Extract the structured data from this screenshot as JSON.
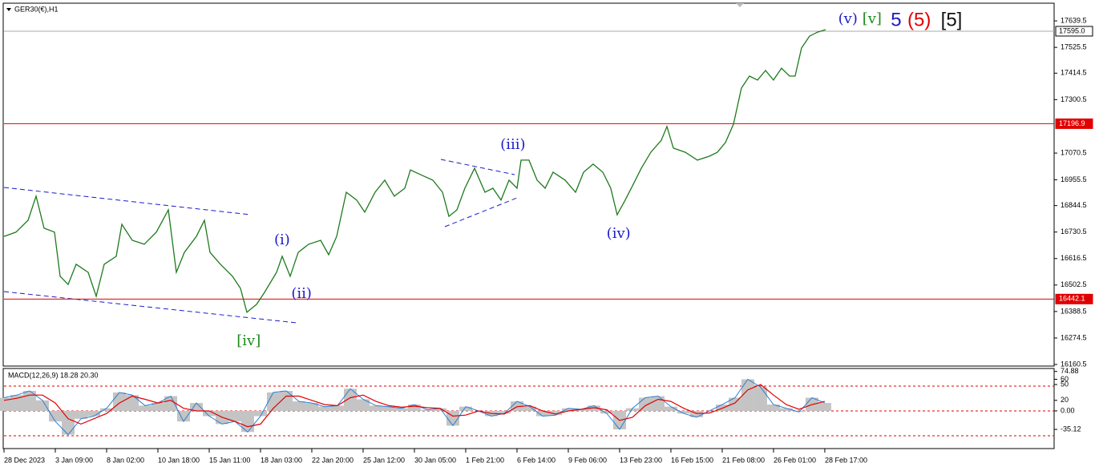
{
  "chart_data": [
    {
      "type": "line",
      "title": "GER30(€),H1",
      "color": "#1d7a1d",
      "x": [
        0,
        0.234,
        0.469,
        0.625,
        0.781,
        0.984,
        1.094,
        1.25,
        1.406,
        1.641,
        1.797,
        1.953,
        2.188,
        2.297,
        2.5,
        2.734,
        2.969,
        3.203,
        3.359,
        3.516,
        3.75,
        3.906,
        4.016,
        4.219,
        4.453,
        4.609,
        4.734,
        4.922,
        5.078,
        5.313,
        5.422,
        5.578,
        5.734,
        5.938,
        6.172,
        6.328,
        6.484,
        6.672,
        6.875,
        7.031,
        7.234,
        7.422,
        7.609,
        7.813,
        7.922,
        8.125,
        8.359,
        8.547,
        8.672,
        8.828,
        8.984,
        9.172,
        9.375,
        9.531,
        9.688,
        9.844,
        10,
        10.078,
        10.234,
        10.391,
        10.547,
        10.703,
        10.938,
        11.141,
        11.297,
        11.484,
        11.672,
        11.828,
        11.953,
        12.109,
        12.266,
        12.422,
        12.609,
        12.813,
        12.922,
        13.047,
        13.281,
        13.516,
        13.75,
        13.906,
        14.063,
        14.219,
        14.375,
        14.531,
        14.688,
        14.844,
        15,
        15.156,
        15.313,
        15.422,
        15.547,
        15.703,
        15.859,
        16.016
      ],
      "values": [
        16712,
        16730,
        16781,
        16885,
        16747,
        16730,
        16540,
        16505,
        16592,
        16557,
        16454,
        16592,
        16626,
        16764,
        16695,
        16678,
        16730,
        16826,
        16557,
        16643,
        16712,
        16781,
        16643,
        16592,
        16540,
        16488,
        16385,
        16419,
        16471,
        16557,
        16626,
        16540,
        16643,
        16678,
        16695,
        16633,
        16712,
        16902,
        16868,
        16816,
        16902,
        16954,
        16885,
        16919,
        16998,
        16977,
        16954,
        16902,
        16798,
        16826,
        16919,
        17005,
        16902,
        16919,
        16868,
        16954,
        16919,
        17040,
        17040,
        16954,
        16919,
        16988,
        16954,
        16902,
        16988,
        17023,
        16988,
        16919,
        16805,
        16868,
        16936,
        17005,
        17074,
        17126,
        17185,
        17092,
        17074,
        17040,
        17057,
        17074,
        17116,
        17195,
        17350,
        17402,
        17385,
        17426,
        17385,
        17436,
        17402,
        17402,
        17523,
        17574,
        17591,
        17602
      ],
      "xlim": [
        0,
        20.47
      ],
      "ylim": [
        16153.6,
        17677.7
      ],
      "yticks": [
        17639.5,
        17525.5,
        17414.5,
        17300.5,
        17070.5,
        16955.5,
        16844.5,
        16730.5,
        16616.5,
        16502.5,
        16388.5,
        16274.5,
        16160.5
      ],
      "xticks": [
        {
          "value": 0,
          "label": "28 Dec 2023"
        },
        {
          "value": 1,
          "label": "3 Jan 09:00"
        },
        {
          "value": 2,
          "label": "8 Jan 02:00"
        },
        {
          "value": 3,
          "label": "10 Jan 18:00"
        },
        {
          "value": 4,
          "label": "15 Jan 11:00"
        },
        {
          "value": 5,
          "label": "18 Jan 03:00"
        },
        {
          "value": 6,
          "label": "22 Jan 20:00"
        },
        {
          "value": 7,
          "label": "25 Jan 12:00"
        },
        {
          "value": 8,
          "label": "30 Jan 05:00"
        },
        {
          "value": 9,
          "label": "1 Feb 21:00"
        },
        {
          "value": 10,
          "label": "6 Feb 14:00"
        },
        {
          "value": 11,
          "label": "9 Feb 06:00"
        },
        {
          "value": 12,
          "label": "13 Feb 23:00"
        },
        {
          "value": 13,
          "label": "16 Feb 15:00"
        },
        {
          "value": 14,
          "label": "21 Feb 08:00"
        },
        {
          "value": 15,
          "label": "26 Feb 01:00"
        },
        {
          "value": 16,
          "label": "28 Feb 17:00"
        }
      ],
      "hlines": [
        {
          "value": 17595,
          "label": "17595.0",
          "color": "#a8a8a8"
        },
        {
          "value": 17196.9,
          "color": "#e00000"
        },
        {
          "value": 16442.1,
          "color": "#e00000"
        }
      ],
      "annotations": [
        {
          "text": "(v)",
          "x": 16.45,
          "y": 17647,
          "color": "#1a1acc"
        },
        {
          "text": "[v]",
          "x": 16.92,
          "y": 17647,
          "color": "#1d8a1d"
        },
        {
          "text": "5",
          "x": 17.39,
          "y": 17640,
          "color": "#1a1acc"
        },
        {
          "text": "(5)",
          "x": 17.84,
          "y": 17640,
          "color": "#e00000"
        },
        {
          "text": "[5]",
          "x": 18.47,
          "y": 17640,
          "color": "#111111"
        },
        {
          "text": "(iii)",
          "x": 9.92,
          "y": 17105,
          "color": "#1a1acc"
        },
        {
          "text": "(iv)",
          "x": 11.98,
          "y": 16723,
          "color": "#1a1acc"
        },
        {
          "text": "(i)",
          "x": 5.42,
          "y": 16695,
          "color": "#1a1acc"
        },
        {
          "text": "(ii)",
          "x": 5.8,
          "y": 16464,
          "color": "#1a1acc"
        },
        {
          "text": "[iv]",
          "x": 4.77,
          "y": 16261,
          "color": "#1d8a1d"
        }
      ]
    },
    {
      "type": "macd",
      "title": "MACD(12,26,9) 18.28 20.30",
      "color": "#c4c4c4",
      "line_color": "#2a7fd4",
      "signal_color": "#e00000",
      "x": [
        0,
        0.25,
        0.5,
        0.75,
        1,
        1.25,
        1.5,
        1.75,
        2,
        2.25,
        2.5,
        2.75,
        3,
        3.25,
        3.5,
        3.75,
        4,
        4.25,
        4.5,
        4.75,
        5,
        5.25,
        5.5,
        5.75,
        6,
        6.25,
        6.5,
        6.75,
        7,
        7.25,
        7.5,
        7.75,
        8,
        8.25,
        8.5,
        8.75,
        9,
        9.25,
        9.5,
        9.75,
        10,
        10.25,
        10.5,
        10.75,
        11,
        11.25,
        11.5,
        11.75,
        12,
        12.25,
        12.5,
        12.75,
        13,
        13.25,
        13.5,
        13.75,
        14,
        14.25,
        14.5,
        14.75,
        15,
        15.25,
        15.5,
        15.75,
        16
      ],
      "values": [
        25,
        30,
        38,
        20,
        -20,
        -45,
        -15,
        -10,
        5,
        35,
        30,
        10,
        15,
        28,
        -20,
        15,
        -10,
        -25,
        -20,
        -40,
        -10,
        35,
        38,
        18,
        15,
        8,
        10,
        42,
        22,
        10,
        8,
        5,
        12,
        2,
        5,
        -28,
        8,
        0,
        -10,
        -5,
        18,
        8,
        -10,
        -8,
        5,
        3,
        10,
        -5,
        -35,
        5,
        25,
        28,
        8,
        -5,
        -12,
        0,
        12,
        25,
        60,
        45,
        12,
        5,
        -2,
        25,
        15
      ],
      "signal": [
        20,
        24,
        30,
        30,
        15,
        -15,
        -25,
        -15,
        -5,
        15,
        28,
        22,
        15,
        20,
        5,
        0,
        0,
        -12,
        -20,
        -30,
        -25,
        5,
        28,
        28,
        20,
        12,
        10,
        25,
        30,
        18,
        10,
        7,
        9,
        6,
        5,
        -10,
        -8,
        0,
        -5,
        -6,
        8,
        10,
        0,
        -6,
        0,
        3,
        6,
        2,
        -18,
        -12,
        10,
        22,
        18,
        5,
        -5,
        -4,
        5,
        15,
        40,
        50,
        30,
        12,
        3,
        12,
        18
      ],
      "xlim": [
        0,
        20.47
      ],
      "ylim": [
        -70,
        79
      ],
      "yticks": [
        74.88,
        60,
        50,
        {
          "value": 0,
          "label": "0.00"
        },
        20,
        -35.12
      ]
    }
  ]
}
